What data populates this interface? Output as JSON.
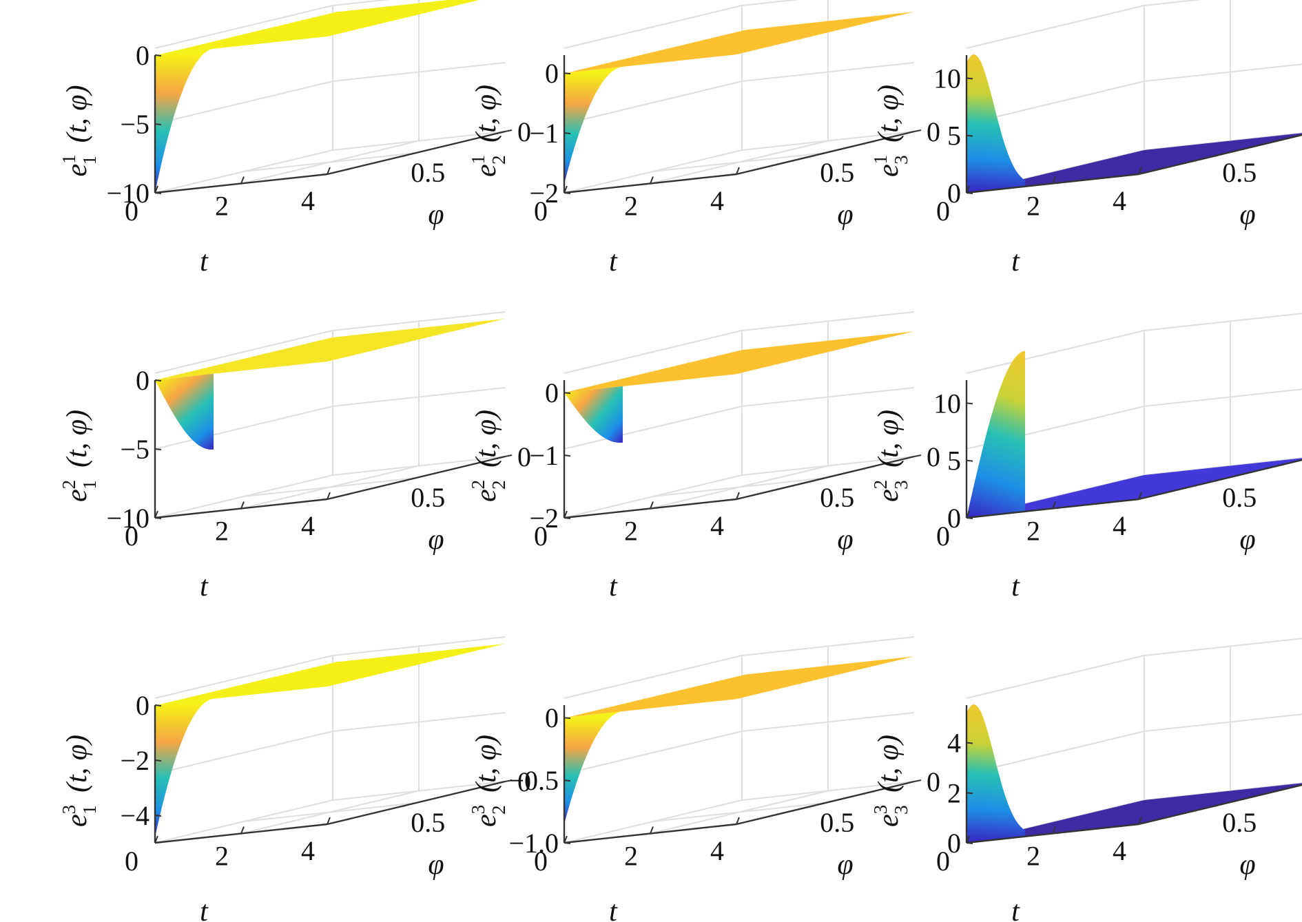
{
  "chart_data": [
    {
      "type": "surface3d",
      "row": 1,
      "col": 1,
      "zlabel": {
        "var": "e",
        "sup": "1",
        "sub": "1",
        "args": "(t, φ)"
      },
      "xlabel": "t",
      "ylabel": "φ",
      "xticks": [
        "0",
        "2",
        "4"
      ],
      "yticks": [
        "0",
        "0.5"
      ],
      "zticks": [
        "0",
        "−5",
        "−10"
      ],
      "zlim": [
        -10,
        0
      ],
      "kind": "dip_hold",
      "extreme": -10,
      "edge_color": "#2a32c8",
      "flat_color": "#f4f016"
    },
    {
      "type": "surface3d",
      "row": 1,
      "col": 2,
      "zlabel": {
        "var": "e",
        "sup": "1",
        "sub": "2",
        "args": "(t, φ)"
      },
      "xlabel": "t",
      "ylabel": "φ",
      "xticks": [
        "0",
        "2",
        "4"
      ],
      "yticks": [
        "0",
        "0.5"
      ],
      "zticks": [
        "0",
        "−1",
        "−2"
      ],
      "zlim": [
        -2,
        0.3
      ],
      "kind": "dip_hold",
      "extreme": -1.85,
      "edge_color": "#2a32c8",
      "flat_color": "#fbc12f"
    },
    {
      "type": "surface3d",
      "row": 1,
      "col": 3,
      "zlabel": {
        "var": "e",
        "sup": "1",
        "sub": "3",
        "args": "(t, φ)"
      },
      "xlabel": "t",
      "ylabel": "φ",
      "xticks": [
        "0",
        "2",
        "4"
      ],
      "yticks": [
        "0",
        "0.5"
      ],
      "zticks": [
        "0",
        "5",
        "10"
      ],
      "zlim": [
        0,
        12
      ],
      "kind": "bump_edge",
      "extreme": 12,
      "edge_color": "#f2d72b",
      "flat_color": "#3c2ba3"
    },
    {
      "type": "surface3d",
      "row": 2,
      "col": 1,
      "zlabel": {
        "var": "e",
        "sup": "2",
        "sub": "1",
        "args": "(t, φ)"
      },
      "xlabel": "t",
      "ylabel": "φ",
      "xticks": [
        "0",
        "2",
        "4"
      ],
      "yticks": [
        "0",
        "0.5"
      ],
      "zticks": [
        "0",
        "−5",
        "−10"
      ],
      "zlim": [
        -10,
        0
      ],
      "kind": "dip_return",
      "extreme": -5.5,
      "edge_color": "#2a32c8",
      "flat_color": "#f4e627"
    },
    {
      "type": "surface3d",
      "row": 2,
      "col": 2,
      "zlabel": {
        "var": "e",
        "sup": "2",
        "sub": "2",
        "args": "(t, φ)"
      },
      "xlabel": "t",
      "ylabel": "φ",
      "xticks": [
        "0",
        "2",
        "4"
      ],
      "yticks": [
        "0",
        "0.5"
      ],
      "zticks": [
        "0",
        "−1",
        "−2"
      ],
      "zlim": [
        -2,
        0.2
      ],
      "kind": "dip_return",
      "extreme": -0.9,
      "edge_color": "#2a32c8",
      "flat_color": "#fbc12f"
    },
    {
      "type": "surface3d",
      "row": 2,
      "col": 3,
      "zlabel": {
        "var": "e",
        "sup": "2",
        "sub": "3",
        "args": "(t, φ)"
      },
      "xlabel": "t",
      "ylabel": "φ",
      "xticks": [
        "0",
        "2",
        "4"
      ],
      "yticks": [
        "0",
        "0.5"
      ],
      "zticks": [
        "0",
        "5",
        "10"
      ],
      "zlim": [
        0,
        12
      ],
      "kind": "rise_drop",
      "extreme": 14,
      "edge_color": "#f2d72b",
      "flat_color": "#4338d8"
    },
    {
      "type": "surface3d",
      "row": 3,
      "col": 1,
      "zlabel": {
        "var": "e",
        "sup": "3",
        "sub": "1",
        "args": "(t, φ)"
      },
      "xlabel": "t",
      "ylabel": "φ",
      "xticks": [
        "0",
        "2",
        "4"
      ],
      "yticks": [
        "0",
        "0.5"
      ],
      "zticks": [
        "0",
        "−2",
        "−4"
      ],
      "zlim": [
        -5,
        0
      ],
      "kind": "dip_hold",
      "extreme": -4.8,
      "edge_color": "#2a32c8",
      "flat_color": "#f4f016"
    },
    {
      "type": "surface3d",
      "row": 3,
      "col": 2,
      "zlabel": {
        "var": "e",
        "sup": "3",
        "sub": "2",
        "args": "(t, φ)"
      },
      "xlabel": "t",
      "ylabel": "φ",
      "xticks": [
        "0",
        "2",
        "4"
      ],
      "yticks": [
        "0",
        "0.5"
      ],
      "zticks": [
        "0",
        "−0.5",
        "−1.0"
      ],
      "zlim": [
        -1,
        0.1
      ],
      "kind": "dip_hold",
      "extreme": -0.85,
      "edge_color": "#2a32c8",
      "flat_color": "#fbc12f"
    },
    {
      "type": "surface3d",
      "row": 3,
      "col": 3,
      "zlabel": {
        "var": "e",
        "sup": "3",
        "sub": "3",
        "args": "(t, φ)"
      },
      "xlabel": "t",
      "ylabel": "φ",
      "xticks": [
        "0",
        "2",
        "4"
      ],
      "yticks": [
        "0",
        "0.5"
      ],
      "zticks": [
        "0",
        "2",
        "4"
      ],
      "zlim": [
        0,
        5.5
      ],
      "kind": "bump_edge",
      "extreme": 5.5,
      "edge_color": "#f2d72b",
      "flat_color": "#3c2ba3"
    }
  ]
}
